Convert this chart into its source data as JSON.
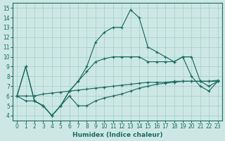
{
  "xlabel": "Humidex (Indice chaleur)",
  "xlim": [
    -0.5,
    23.5
  ],
  "ylim": [
    3.5,
    15.5
  ],
  "xticks": [
    0,
    1,
    2,
    3,
    4,
    5,
    6,
    7,
    8,
    9,
    10,
    11,
    12,
    13,
    14,
    15,
    16,
    17,
    18,
    19,
    20,
    21,
    22,
    23
  ],
  "yticks": [
    4,
    5,
    6,
    7,
    8,
    9,
    10,
    11,
    12,
    13,
    14,
    15
  ],
  "bg_color": "#cde8e4",
  "grid_color": "#aacfca",
  "line_color": "#1a6b60",
  "lines": [
    {
      "x": [
        0,
        1,
        2,
        3,
        4,
        5,
        6,
        7,
        8,
        9,
        10,
        11,
        12,
        13,
        14,
        15,
        16,
        17,
        18,
        19,
        20,
        21,
        22,
        23
      ],
      "y": [
        6,
        9,
        5.5,
        5,
        4,
        5,
        6.5,
        7.5,
        9,
        11.5,
        12.5,
        13,
        13,
        14.8,
        14,
        11,
        10.5,
        10,
        9.5,
        10,
        8,
        7,
        6.5,
        7.5
      ]
    },
    {
      "x": [
        0,
        1,
        2,
        3,
        4,
        5,
        6,
        7,
        8,
        9,
        10,
        11,
        12,
        13,
        14,
        15,
        16,
        17,
        18,
        19,
        20,
        21,
        22,
        23
      ],
      "y": [
        6,
        9,
        5.5,
        5,
        4,
        5,
        6.5,
        7.5,
        8.5,
        9.5,
        9.8,
        10,
        10,
        10,
        10,
        9.5,
        9.5,
        9.5,
        9.5,
        10,
        10,
        7.5,
        7,
        7.5
      ]
    },
    {
      "x": [
        0,
        1,
        2,
        3,
        4,
        5,
        6,
        7,
        8,
        9,
        10,
        11,
        12,
        13,
        14,
        15,
        16,
        17,
        18,
        19,
        20,
        21,
        22,
        23
      ],
      "y": [
        6,
        6,
        6,
        6.2,
        6.3,
        6.4,
        6.5,
        6.6,
        6.7,
        6.8,
        6.9,
        7.0,
        7.1,
        7.2,
        7.3,
        7.4,
        7.4,
        7.4,
        7.5,
        7.5,
        7.5,
        7.5,
        7.5,
        7.5
      ]
    },
    {
      "x": [
        0,
        1,
        2,
        3,
        4,
        5,
        6,
        7,
        8,
        9,
        10,
        11,
        12,
        13,
        14,
        15,
        16,
        17,
        18,
        19,
        20,
        21,
        22,
        23
      ],
      "y": [
        6,
        5.5,
        5.5,
        5,
        4,
        5,
        6,
        5,
        5,
        5.5,
        5.8,
        6.0,
        6.2,
        6.5,
        6.8,
        7.0,
        7.2,
        7.3,
        7.4,
        7.5,
        7.5,
        7.5,
        7.5,
        7.6
      ]
    }
  ]
}
